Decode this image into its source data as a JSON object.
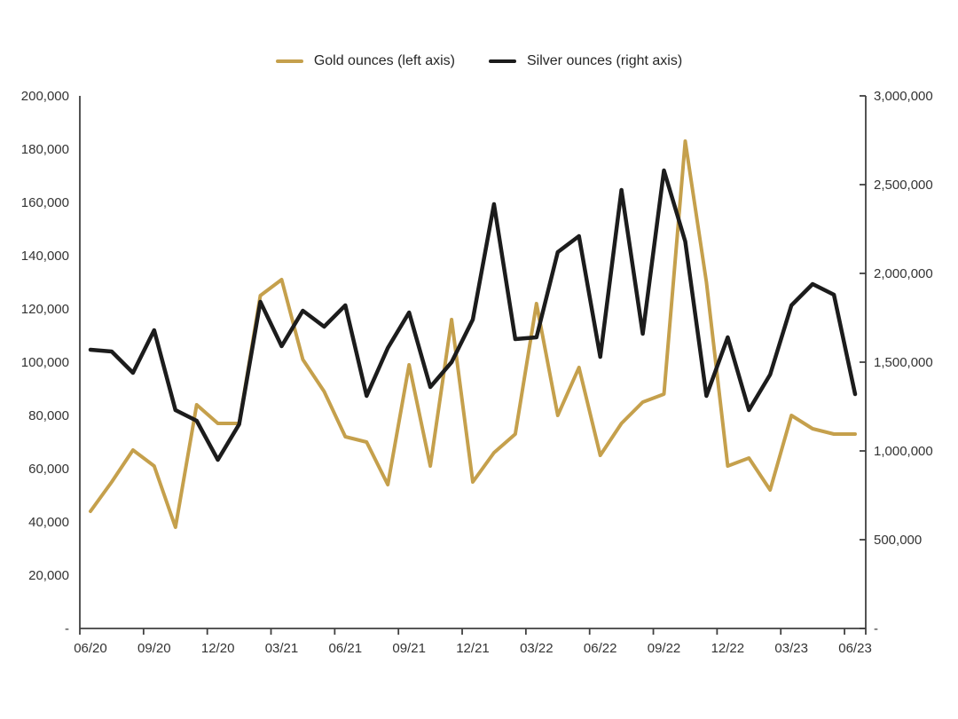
{
  "legend": {
    "items": [
      {
        "label": "Gold ounces (left axis)"
      },
      {
        "label": "Silver ounces (right axis)"
      }
    ]
  },
  "chart_data": {
    "type": "line",
    "title": "",
    "xlabel": "",
    "ylabel_left": "",
    "ylabel_right": "",
    "grid": false,
    "legend_position": "top-center",
    "axis_color": "#404040",
    "text_color": "#333333",
    "x": [
      "06/20",
      "07/20",
      "08/20",
      "09/20",
      "10/20",
      "11/20",
      "12/20",
      "01/21",
      "02/21",
      "03/21",
      "04/21",
      "05/21",
      "06/21",
      "07/21",
      "08/21",
      "09/21",
      "10/21",
      "11/21",
      "12/21",
      "01/22",
      "02/22",
      "03/22",
      "04/22",
      "05/22",
      "06/22",
      "07/22",
      "08/22",
      "09/22",
      "10/22",
      "11/22",
      "12/22",
      "01/23",
      "02/23",
      "03/23",
      "04/23",
      "05/23",
      "06/23"
    ],
    "x_tick_labels": [
      "06/20",
      "09/20",
      "12/20",
      "03/21",
      "06/21",
      "09/21",
      "12/21",
      "03/22",
      "06/22",
      "09/22",
      "12/22",
      "03/23",
      "06/23"
    ],
    "left_axis": {
      "min": 0,
      "max": 200000,
      "step": 20000,
      "tick_labels": [
        "200,000",
        "180,000",
        "160,000",
        "140,000",
        "120,000",
        "100,000",
        "80,000",
        "60,000",
        "40,000",
        "20,000",
        "-"
      ]
    },
    "right_axis": {
      "min": 0,
      "max": 3000000,
      "step": 500000,
      "tick_labels": [
        "3,000,000",
        "2,500,000",
        "2,000,000",
        "1,500,000",
        "1,000,000",
        "500,000",
        "-"
      ]
    },
    "series": [
      {
        "name": "Gold ounces (left axis)",
        "axis": "left",
        "color": "#C5A04C",
        "stroke_width": 4,
        "values": [
          44000,
          55000,
          67000,
          61000,
          38000,
          84000,
          77000,
          77000,
          125000,
          131000,
          101000,
          89000,
          72000,
          70000,
          54000,
          99000,
          61000,
          116000,
          55000,
          66000,
          73000,
          122000,
          80000,
          98000,
          65000,
          77000,
          85000,
          88000,
          183000,
          130000,
          61000,
          64000,
          52000,
          80000,
          75000,
          73000,
          73000
        ]
      },
      {
        "name": "Silver ounces (right axis)",
        "axis": "right",
        "color": "#1C1C1C",
        "stroke_width": 4.5,
        "values": [
          1570000,
          1560000,
          1440000,
          1680000,
          1230000,
          1170000,
          950000,
          1150000,
          1840000,
          1590000,
          1790000,
          1700000,
          1820000,
          1310000,
          1580000,
          1780000,
          1360000,
          1500000,
          1740000,
          2390000,
          1630000,
          1640000,
          2120000,
          2210000,
          1530000,
          2470000,
          1660000,
          2580000,
          2180000,
          1310000,
          1640000,
          1230000,
          1430000,
          1820000,
          1940000,
          1880000,
          1320000
        ]
      }
    ]
  }
}
